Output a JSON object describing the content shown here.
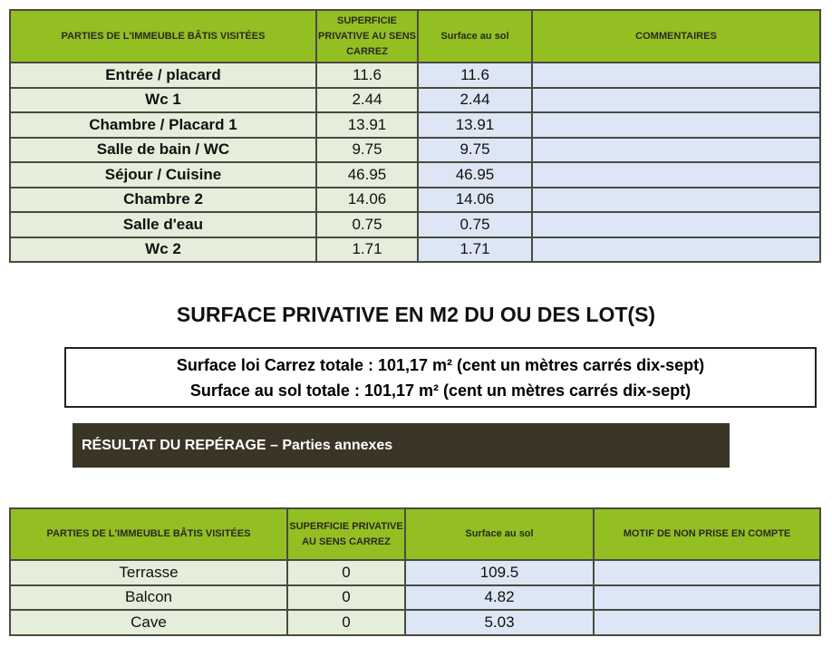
{
  "table1": {
    "headers": [
      "PARTIES DE L'IMMEUBLE BÂTIS VISITÉES",
      "SUPERFICIE PRIVATIVE AU SENS CARREZ",
      "Surface au sol",
      "COMMENTAIRES"
    ],
    "rows": [
      [
        "Entrée / placard",
        "11.6",
        "11.6",
        ""
      ],
      [
        "Wc 1",
        "2.44",
        "2.44",
        ""
      ],
      [
        "Chambre / Placard 1",
        "13.91",
        "13.91",
        ""
      ],
      [
        "Salle de bain / WC",
        "9.75",
        "9.75",
        ""
      ],
      [
        "Séjour / Cuisine",
        "46.95",
        "46.95",
        ""
      ],
      [
        "Chambre 2",
        "14.06",
        "14.06",
        ""
      ],
      [
        "Salle d'eau",
        "0.75",
        "0.75",
        ""
      ],
      [
        "Wc 2",
        "1.71",
        "1.71",
        ""
      ]
    ]
  },
  "summary": {
    "title": "SURFACE PRIVATIVE EN M2 DU OU DES LOT(S)",
    "line1": "Surface loi Carrez totale : 101,17 m² (cent un mètres carrés dix-sept)",
    "line2": "Surface au sol totale : 101,17 m² (cent un mètres carrés dix-sept)"
  },
  "section_bar": "RÉSULTAT DU REPÉRAGE – Parties annexes",
  "table2": {
    "headers": [
      "PARTIES DE L'IMMEUBLE BÂTIS VISITÉES",
      "SUPERFICIE PRIVATIVE AU SENS CARREZ",
      "Surface au sol",
      "MOTIF DE NON PRISE EN COMPTE"
    ],
    "rows": [
      [
        "Terrasse",
        "0",
        "109.5",
        ""
      ],
      [
        "Balcon",
        "0",
        "4.82",
        ""
      ],
      [
        "Cave",
        "0",
        "5.03",
        ""
      ]
    ]
  }
}
